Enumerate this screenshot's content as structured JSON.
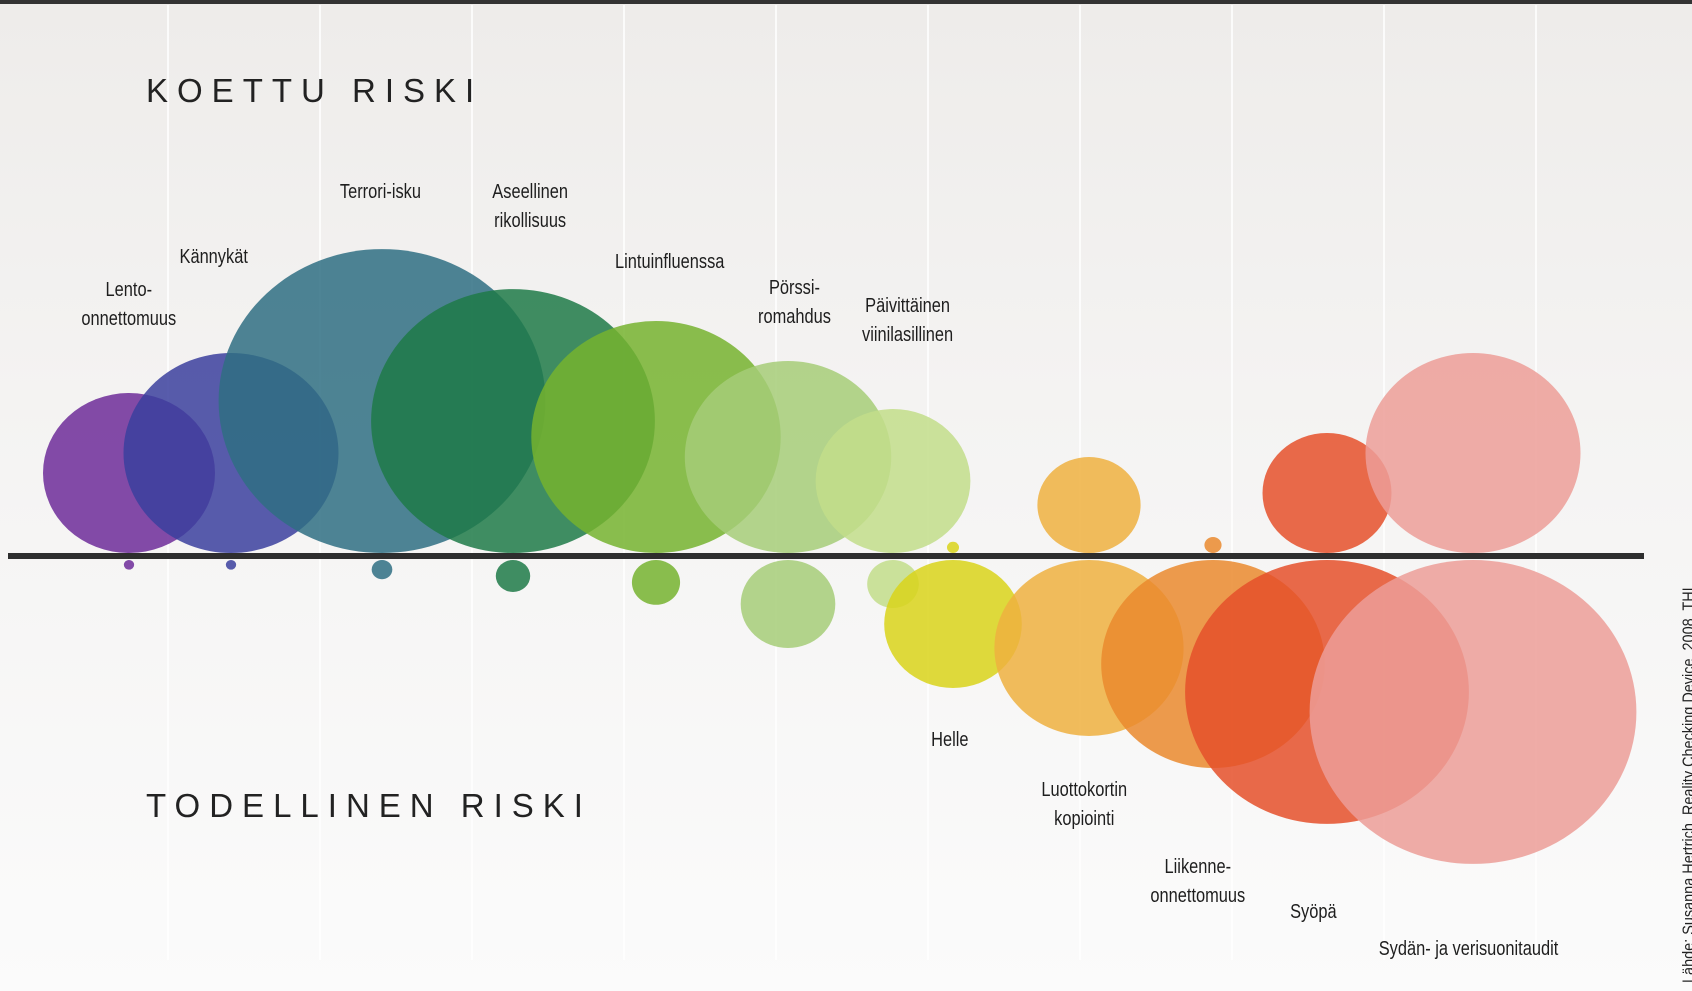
{
  "titles": {
    "perceived": "KOETTU RISKI",
    "actual": "TODELLINEN RISKI"
  },
  "source": "Lähde: Susanna Hertrich, Reality Checking Device, 2008, THL",
  "items": [
    {
      "label": "Lento-\nonnettomuus",
      "color": "#6d2b99",
      "perceived": 1.0,
      "actual": 0.06
    },
    {
      "label": "Kännykät",
      "color": "#3b3f9e",
      "perceived": 1.25,
      "actual": 0.06
    },
    {
      "label": "Terrori-isku",
      "color": "#2f6e83",
      "perceived": 1.9,
      "actual": 0.12
    },
    {
      "label": "Aseellinen\nrikollisuus",
      "color": "#1f7a48",
      "perceived": 1.65,
      "actual": 0.2
    },
    {
      "label": "Lintuinfluenssa",
      "color": "#76b32f",
      "perceived": 1.45,
      "actual": 0.28
    },
    {
      "label": "Pörssi-\nromahdus",
      "color": "#a6cc78",
      "perceived": 1.2,
      "actual": 0.55
    },
    {
      "label": "Päivittäinen\nviinilasillinen",
      "color": "#c2dd8a",
      "perceived": 0.9,
      "actual": 0.3
    },
    {
      "label": "Helle",
      "color": "#d9d31a",
      "perceived": 0.07,
      "actual": 0.8
    },
    {
      "label": "Luottokortin\nkopiointi",
      "color": "#eeb040",
      "perceived": 0.6,
      "actual": 1.1
    },
    {
      "label": "Liikenne-\nonnettomuus",
      "color": "#ea8a2e",
      "perceived": 0.1,
      "actual": 1.3
    },
    {
      "label": "Syöpä",
      "color": "#e5502a",
      "perceived": 0.75,
      "actual": 1.65
    },
    {
      "label": "Sydän- ja verisuonitaudit",
      "color": "#ec9e98",
      "perceived": 1.25,
      "actual": 1.9
    }
  ]
}
